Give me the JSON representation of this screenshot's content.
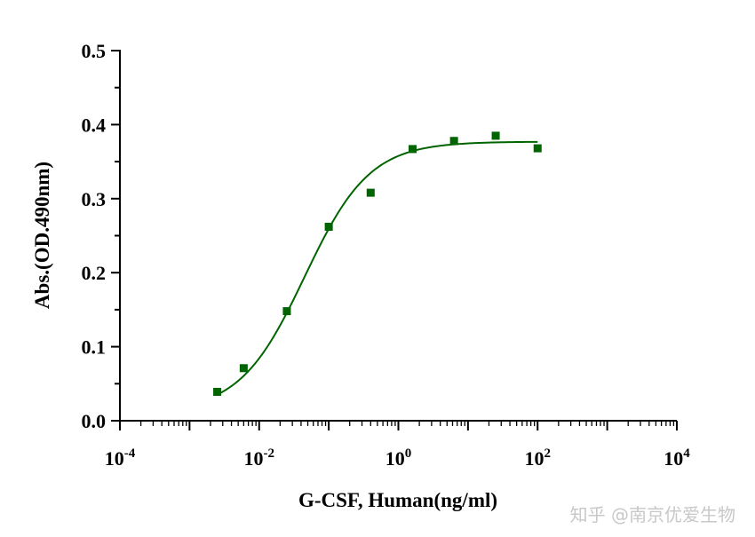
{
  "chart_data": {
    "type": "scatter",
    "title": "",
    "xlabel": "G-CSF, Human(ng/ml)",
    "ylabel": "Abs.(OD.490nm)",
    "xscale": "log",
    "xlim": [
      0.0001,
      10000
    ],
    "ylim": [
      0,
      0.5
    ],
    "x_ticks": [
      {
        "base": "10",
        "exp": "-4"
      },
      {
        "base": "10",
        "exp": "-2"
      },
      {
        "base": "10",
        "exp": "0"
      },
      {
        "base": "10",
        "exp": "2"
      },
      {
        "base": "10",
        "exp": "4"
      }
    ],
    "y_ticks": [
      "0.0",
      "0.1",
      "0.2",
      "0.3",
      "0.4",
      "0.5"
    ],
    "grid": false,
    "series": [
      {
        "color": "#006400",
        "marker": "square",
        "points": [
          {
            "x": 0.0025,
            "y": 0.039
          },
          {
            "x": 0.006,
            "y": 0.071
          },
          {
            "x": 0.025,
            "y": 0.148
          },
          {
            "x": 0.1,
            "y": 0.262
          },
          {
            "x": 0.4,
            "y": 0.308
          },
          {
            "x": 1.6,
            "y": 0.367
          },
          {
            "x": 6.3,
            "y": 0.378
          },
          {
            "x": 25,
            "y": 0.385
          },
          {
            "x": 100,
            "y": 0.368
          }
        ],
        "fit": {
          "model": "4PL",
          "bottom": 0.012,
          "top": 0.377,
          "ec50": 0.045,
          "hill": 0.93,
          "x_range": [
            0.0025,
            100
          ]
        }
      }
    ]
  },
  "watermark": "知乎 @南京优爱生物"
}
